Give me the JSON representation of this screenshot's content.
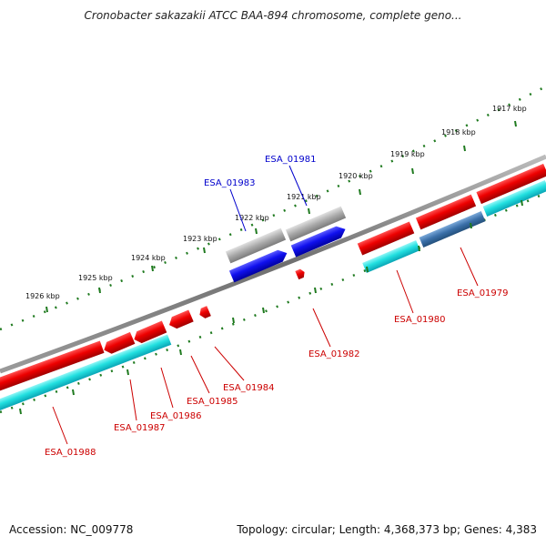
{
  "title": "Cronobacter sakazakii ATCC BAA-894 chromosome, complete geno...",
  "footer": {
    "accession": "Accession: NC_009778",
    "summary": "Topology: circular; Length: 4,368,373 bp; Genes: 4,383"
  },
  "colors": {
    "backbone": "#888888",
    "forward_gene": "#ee0000",
    "reverse_gene": "#1a1aff",
    "cds": "#22e0e0",
    "cds_dark": "#3a6fa8",
    "pseudo": "#a9a9a9",
    "tick": "#1f7a1f",
    "label_red": "#cc0000",
    "label_blue": "#0000cc"
  },
  "scale_ticks": [
    {
      "label": "1917 kbp"
    },
    {
      "label": "1918 kbp"
    },
    {
      "label": "1919 kbp"
    },
    {
      "label": "1920 kbp"
    },
    {
      "label": "1921 kbp"
    },
    {
      "label": "1922 kbp"
    },
    {
      "label": "1923 kbp"
    },
    {
      "label": "1924 kbp"
    },
    {
      "label": "1925 kbp"
    },
    {
      "label": "1926 kbp"
    }
  ],
  "gene_labels": [
    {
      "id": "ESA_01979",
      "color": "label_red"
    },
    {
      "id": "ESA_01980",
      "color": "label_red"
    },
    {
      "id": "ESA_01981",
      "color": "label_blue"
    },
    {
      "id": "ESA_01982",
      "color": "label_red"
    },
    {
      "id": "ESA_01983",
      "color": "label_blue"
    },
    {
      "id": "ESA_01984",
      "color": "label_red"
    },
    {
      "id": "ESA_01985",
      "color": "label_red"
    },
    {
      "id": "ESA_01986",
      "color": "label_red"
    },
    {
      "id": "ESA_01987",
      "color": "label_red"
    },
    {
      "id": "ESA_01988",
      "color": "label_red"
    }
  ]
}
